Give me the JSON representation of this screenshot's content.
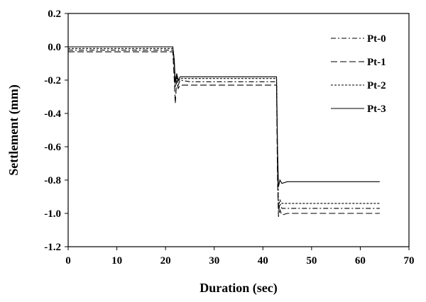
{
  "chart_data": {
    "type": "line",
    "title": "",
    "xlabel": "Duration (sec)",
    "ylabel": "Settlement (mm)",
    "xlim": [
      0,
      70
    ],
    "ylim": [
      -1.2,
      0.2
    ],
    "xticks": [
      0,
      10,
      20,
      30,
      40,
      50,
      60,
      70
    ],
    "yticks": [
      0.2,
      0.0,
      -0.2,
      -0.4,
      -0.6,
      -0.8,
      -1.0,
      -1.2
    ],
    "xtick_labels": [
      "0",
      "10",
      "20",
      "30",
      "40",
      "50",
      "60",
      "70"
    ],
    "ytick_labels": [
      "0.2",
      "0.0",
      "-0.2",
      "-0.4",
      "-0.6",
      "-0.8",
      "-1.0",
      "-1.2"
    ],
    "grid": false,
    "legend_position": "top-right",
    "series": [
      {
        "name": "Pt-0",
        "style": "dash-dot",
        "color": "#000000",
        "x": [
          0,
          21.5,
          21.8,
          22.0,
          22.3,
          22.6,
          23.0,
          25,
          30,
          35,
          40,
          42.8,
          43.0,
          43.2,
          43.5,
          43.9,
          45,
          50,
          55,
          60,
          64
        ],
        "y": [
          -0.02,
          -0.02,
          -0.12,
          -0.24,
          -0.18,
          -0.23,
          -0.2,
          -0.21,
          -0.21,
          -0.21,
          -0.21,
          -0.21,
          -0.7,
          -0.99,
          -0.94,
          -0.97,
          -0.97,
          -0.97,
          -0.97,
          -0.97,
          -0.97
        ]
      },
      {
        "name": "Pt-1",
        "style": "long-dash",
        "color": "#000000",
        "x": [
          0,
          21.5,
          21.8,
          22.0,
          22.3,
          22.6,
          23.0,
          25,
          30,
          35,
          40,
          42.8,
          43.0,
          43.2,
          43.5,
          43.9,
          45,
          50,
          55,
          60,
          64
        ],
        "y": [
          -0.03,
          -0.03,
          -0.2,
          -0.34,
          -0.2,
          -0.25,
          -0.23,
          -0.23,
          -0.23,
          -0.23,
          -0.23,
          -0.23,
          -0.8,
          -1.02,
          -0.98,
          -1.01,
          -1.0,
          -1.0,
          -1.0,
          -1.0,
          -1.0
        ]
      },
      {
        "name": "Pt-2",
        "style": "short-dash",
        "color": "#000000",
        "x": [
          0,
          21.5,
          21.8,
          22.0,
          22.3,
          22.6,
          23.0,
          25,
          30,
          35,
          40,
          42.8,
          43.0,
          43.2,
          43.5,
          43.9,
          45,
          50,
          55,
          60,
          64
        ],
        "y": [
          -0.01,
          -0.01,
          -0.1,
          -0.22,
          -0.17,
          -0.21,
          -0.19,
          -0.19,
          -0.19,
          -0.19,
          -0.19,
          -0.19,
          -0.65,
          -0.96,
          -0.92,
          -0.94,
          -0.94,
          -0.94,
          -0.94,
          -0.94,
          -0.94
        ]
      },
      {
        "name": "Pt-3",
        "style": "solid",
        "color": "#000000",
        "x": [
          0,
          21.5,
          21.8,
          22.0,
          22.3,
          22.6,
          23.0,
          25,
          30,
          35,
          40,
          42.8,
          43.0,
          43.2,
          43.5,
          43.9,
          45,
          50,
          55,
          60,
          64
        ],
        "y": [
          0.0,
          0.0,
          -0.08,
          -0.21,
          -0.16,
          -0.2,
          -0.18,
          -0.18,
          -0.18,
          -0.18,
          -0.18,
          -0.18,
          -0.6,
          -0.84,
          -0.8,
          -0.82,
          -0.81,
          -0.81,
          -0.81,
          -0.81,
          -0.81
        ]
      }
    ]
  }
}
